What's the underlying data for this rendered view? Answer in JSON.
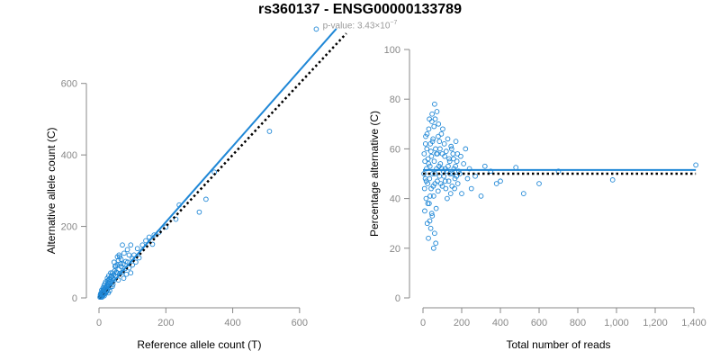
{
  "title": "rs360137 - ENSG00000133789",
  "subtitle": {
    "prefix": "p-value: 3.43×10",
    "exponent": "−7"
  },
  "colors": {
    "points": "#1f87d6",
    "fit": "#1f87d6",
    "reference": "#000000",
    "axis": "#888888"
  },
  "chart_data": [
    {
      "type": "scatter",
      "xlabel": "Reference allele count (T)",
      "ylabel": "Alternative allele count (C)",
      "xlim": [
        0,
        700
      ],
      "ylim": [
        0,
        700
      ],
      "xticks": [
        0,
        200,
        400,
        600
      ],
      "xtick_labels": [
        "0",
        "200",
        "400",
        "600"
      ],
      "yticks": [
        0,
        200,
        400,
        600
      ],
      "ytick_labels": [
        "0",
        "200",
        "400",
        "600"
      ],
      "grid": false,
      "fit_line": {
        "from": [
          0,
          0
        ],
        "to": [
          710,
          753
        ],
        "style": "solid"
      },
      "reference_line": {
        "from": [
          0,
          0
        ],
        "to": [
          740,
          740
        ],
        "style": "dotted"
      },
      "points": [
        [
          650,
          752
        ],
        [
          510,
          466
        ],
        [
          345,
          352
        ],
        [
          320,
          276
        ],
        [
          300,
          240
        ],
        [
          240,
          260
        ],
        [
          230,
          220
        ],
        [
          200,
          198
        ],
        [
          180,
          184
        ],
        [
          165,
          176
        ],
        [
          160,
          150
        ],
        [
          150,
          170
        ],
        [
          140,
          160
        ],
        [
          130,
          148
        ],
        [
          120,
          112
        ],
        [
          115,
          138
        ],
        [
          100,
          110
        ],
        [
          95,
          148
        ],
        [
          90,
          120
        ],
        [
          85,
          135
        ],
        [
          80,
          102
        ],
        [
          75,
          125
        ],
        [
          70,
          148
        ],
        [
          65,
          95
        ],
        [
          62,
          115
        ],
        [
          60,
          80
        ],
        [
          58,
          105
        ],
        [
          55,
          92
        ],
        [
          52,
          72
        ],
        [
          50,
          60
        ],
        [
          48,
          88
        ],
        [
          46,
          75
        ],
        [
          44,
          65
        ],
        [
          42,
          55
        ],
        [
          40,
          70
        ],
        [
          38,
          48
        ],
        [
          36,
          58
        ],
        [
          35,
          40
        ],
        [
          33,
          52
        ],
        [
          31,
          45
        ],
        [
          30,
          35
        ],
        [
          29,
          62
        ],
        [
          28,
          30
        ],
        [
          27,
          42
        ],
        [
          26,
          25
        ],
        [
          25,
          38
        ],
        [
          24,
          20
        ],
        [
          23,
          32
        ],
        [
          22,
          28
        ],
        [
          21,
          15
        ],
        [
          20,
          22
        ],
        [
          19,
          30
        ],
        [
          18,
          12
        ],
        [
          17,
          20
        ],
        [
          16,
          25
        ],
        [
          15,
          10
        ],
        [
          14,
          18
        ],
        [
          13,
          8
        ],
        [
          12,
          14
        ],
        [
          11,
          20
        ],
        [
          10,
          6
        ],
        [
          10,
          12
        ],
        [
          9,
          16
        ],
        [
          8,
          4
        ],
        [
          7,
          10
        ],
        [
          6,
          6
        ],
        [
          5,
          3
        ],
        [
          4,
          8
        ],
        [
          3,
          2
        ],
        [
          8,
          22
        ],
        [
          12,
          28
        ],
        [
          18,
          40
        ],
        [
          22,
          18
        ],
        [
          26,
          48
        ],
        [
          30,
          52
        ],
        [
          34,
          30
        ],
        [
          38,
          62
        ],
        [
          42,
          38
        ],
        [
          46,
          50
        ],
        [
          50,
          90
        ],
        [
          54,
          70
        ],
        [
          58,
          50
        ],
        [
          62,
          68
        ],
        [
          66,
          88
        ],
        [
          70,
          72
        ],
        [
          74,
          55
        ],
        [
          78,
          82
        ],
        [
          82,
          66
        ],
        [
          86,
          100
        ],
        [
          90,
          84
        ],
        [
          95,
          70
        ],
        [
          100,
          92
        ],
        [
          105,
          120
        ],
        [
          110,
          100
        ],
        [
          60,
          120
        ],
        [
          66,
          108
        ],
        [
          72,
          95
        ],
        [
          45,
          100
        ],
        [
          55,
          115
        ],
        [
          35,
          70
        ],
        [
          25,
          55
        ],
        [
          15,
          35
        ],
        [
          20,
          45
        ],
        [
          40,
          32
        ],
        [
          32,
          20
        ],
        [
          28,
          14
        ],
        [
          24,
          35
        ],
        [
          18,
          28
        ],
        [
          14,
          24
        ],
        [
          11,
          6
        ],
        [
          7,
          14
        ],
        [
          16,
          6
        ],
        [
          9,
          2
        ],
        [
          5,
          12
        ]
      ]
    },
    {
      "type": "scatter",
      "xlabel": "Total number of reads",
      "ylabel": "Percentage alternative (C)",
      "xlim": [
        0,
        1400
      ],
      "ylim": [
        0,
        100
      ],
      "xticks": [
        0,
        200,
        400,
        600,
        800,
        1000,
        1200,
        1400
      ],
      "xtick_labels": [
        "0",
        "200",
        "400",
        "600",
        "800",
        "1,000",
        "1,200",
        "1,400"
      ],
      "yticks": [
        0,
        20,
        40,
        60,
        80,
        100
      ],
      "ytick_labels": [
        "0",
        "20",
        "40",
        "60",
        "80",
        "100"
      ],
      "grid": false,
      "fit_line": {
        "from": [
          0,
          51.5
        ],
        "to": [
          1410,
          51.5
        ],
        "style": "solid"
      },
      "reference_line": {
        "from": [
          0,
          50
        ],
        "to": [
          1410,
          50
        ],
        "style": "dotted"
      },
      "points": [
        [
          1410,
          53.5
        ],
        [
          980,
          47.5
        ],
        [
          700,
          51
        ],
        [
          600,
          46
        ],
        [
          520,
          42
        ],
        [
          480,
          52.5
        ],
        [
          400,
          47
        ],
        [
          380,
          46
        ],
        [
          350,
          51
        ],
        [
          320,
          53
        ],
        [
          300,
          41
        ],
        [
          270,
          49
        ],
        [
          250,
          44
        ],
        [
          240,
          52
        ],
        [
          230,
          48
        ],
        [
          220,
          60
        ],
        [
          210,
          54
        ],
        [
          200,
          42
        ],
        [
          195,
          57
        ],
        [
          190,
          50
        ],
        [
          180,
          46
        ],
        [
          175,
          55
        ],
        [
          170,
          63
        ],
        [
          165,
          48
        ],
        [
          160,
          52
        ],
        [
          155,
          58
        ],
        [
          150,
          45
        ],
        [
          145,
          61
        ],
        [
          140,
          50
        ],
        [
          135,
          56
        ],
        [
          130,
          53
        ],
        [
          125,
          40
        ],
        [
          120,
          59
        ],
        [
          115,
          47
        ],
        [
          110,
          62
        ],
        [
          105,
          51
        ],
        [
          100,
          45
        ],
        [
          95,
          66
        ],
        [
          90,
          54
        ],
        [
          85,
          49
        ],
        [
          80,
          70
        ],
        [
          78,
          43
        ],
        [
          75,
          58
        ],
        [
          72,
          75
        ],
        [
          70,
          52
        ],
        [
          68,
          36
        ],
        [
          65,
          60
        ],
        [
          62,
          46
        ],
        [
          60,
          78
        ],
        [
          58,
          55
        ],
        [
          55,
          41
        ],
        [
          52,
          64
        ],
        [
          50,
          50
        ],
        [
          48,
          33
        ],
        [
          46,
          71
        ],
        [
          44,
          57
        ],
        [
          42,
          44
        ],
        [
          40,
          28
        ],
        [
          38,
          62
        ],
        [
          36,
          53
        ],
        [
          34,
          48
        ],
        [
          32,
          38
        ],
        [
          30,
          68
        ],
        [
          28,
          24
        ],
        [
          26,
          56
        ],
        [
          24,
          46
        ],
        [
          22,
          30
        ],
        [
          20,
          60
        ],
        [
          18,
          52
        ],
        [
          16,
          40
        ],
        [
          14,
          65
        ],
        [
          12,
          48
        ],
        [
          10,
          55
        ],
        [
          8,
          44
        ],
        [
          6,
          58
        ],
        [
          5,
          50
        ],
        [
          9,
          35
        ],
        [
          13,
          62
        ],
        [
          17,
          47
        ],
        [
          21,
          66
        ],
        [
          25,
          38
        ],
        [
          29,
          54
        ],
        [
          33,
          72
        ],
        [
          37,
          41
        ],
        [
          41,
          59
        ],
        [
          45,
          34
        ],
        [
          49,
          63
        ],
        [
          53,
          45
        ],
        [
          57,
          69
        ],
        [
          61,
          50
        ],
        [
          66,
          22
        ],
        [
          70,
          58
        ],
        [
          74,
          47
        ],
        [
          79,
          65
        ],
        [
          83,
          53
        ],
        [
          88,
          60
        ],
        [
          92,
          46
        ],
        [
          97,
          52
        ],
        [
          102,
          68
        ],
        [
          108,
          49
        ],
        [
          112,
          57
        ],
        [
          118,
          44
        ],
        [
          122,
          51
        ],
        [
          128,
          64
        ],
        [
          133,
          47
        ],
        [
          138,
          55
        ],
        [
          143,
          42
        ],
        [
          148,
          60
        ],
        [
          153,
          50
        ],
        [
          158,
          56
        ],
        [
          163,
          44
        ],
        [
          168,
          53
        ],
        [
          173,
          49
        ],
        [
          178,
          58
        ],
        [
          185,
          51
        ],
        [
          55,
          20
        ],
        [
          60,
          26
        ],
        [
          35,
          31
        ],
        [
          47,
          74
        ],
        [
          63,
          72
        ],
        [
          85,
          63
        ],
        [
          100,
          58
        ],
        [
          115,
          52
        ]
      ]
    }
  ]
}
